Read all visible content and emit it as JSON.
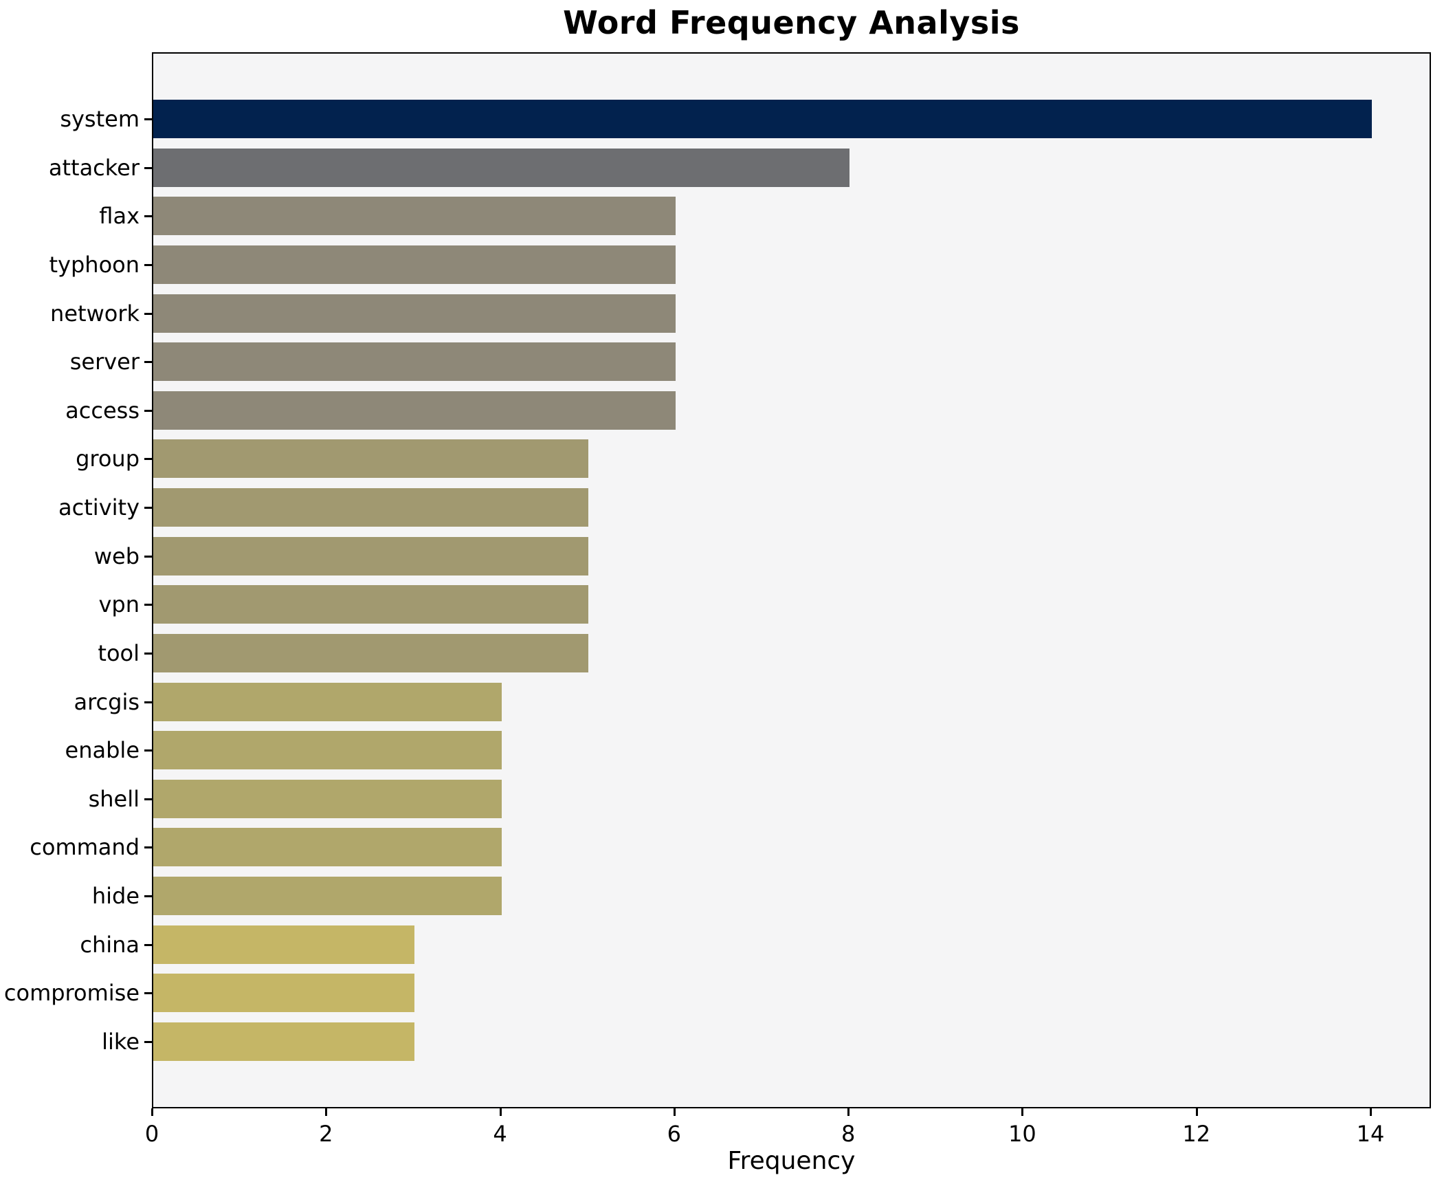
{
  "chart_data": {
    "type": "bar",
    "orientation": "horizontal",
    "title": "Word Frequency Analysis",
    "xlabel": "Frequency",
    "ylabel": "",
    "categories": [
      "system",
      "attacker",
      "flax",
      "typhoon",
      "network",
      "server",
      "access",
      "group",
      "activity",
      "web",
      "vpn",
      "tool",
      "arcgis",
      "enable",
      "shell",
      "command",
      "hide",
      "china",
      "compromise",
      "like"
    ],
    "values": [
      14,
      8,
      6,
      6,
      6,
      6,
      6,
      5,
      5,
      5,
      5,
      5,
      4,
      4,
      4,
      4,
      4,
      3,
      3,
      3
    ],
    "bar_colors": [
      "#02224e",
      "#6d6e71",
      "#8e8878",
      "#8e8878",
      "#8e8878",
      "#8e8878",
      "#8e8878",
      "#a19970",
      "#a19970",
      "#a19970",
      "#a19970",
      "#a19970",
      "#b0a76b",
      "#b0a76b",
      "#b0a76b",
      "#b0a76b",
      "#b0a76b",
      "#c5b666",
      "#c5b666",
      "#c5b666"
    ],
    "x_ticks": [
      0,
      2,
      4,
      6,
      8,
      10,
      12,
      14
    ],
    "xlim": [
      0,
      14.69
    ],
    "grid": false,
    "legend": null,
    "plot_bg": "#f5f5f6",
    "figure_bg": "#ffffff",
    "text_color": "#000000"
  }
}
